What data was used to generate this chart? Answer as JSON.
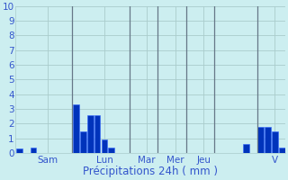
{
  "xlabel": "Précipitations 24h ( mm )",
  "ylim": [
    0,
    10
  ],
  "yticks": [
    0,
    1,
    2,
    3,
    4,
    5,
    6,
    7,
    8,
    9,
    10
  ],
  "background_color": "#cceef0",
  "bar_color": "#0033bb",
  "bar_edge_color": "#3366ff",
  "grid_color": "#aacccc",
  "day_labels": [
    "Sam",
    "Lun",
    "Mar",
    "Mer",
    "Jeu",
    "V"
  ],
  "bar_values": [
    0.3,
    0.0,
    0.35,
    0.0,
    0.0,
    0.0,
    0.0,
    0.0,
    3.3,
    1.5,
    2.6,
    2.6,
    0.9,
    0.35,
    0.0,
    0.0,
    0.0,
    0.0,
    0.0,
    0.0,
    0.0,
    0.0,
    0.0,
    0.0,
    0.0,
    0.0,
    0.0,
    0.0,
    0.0,
    0.0,
    0.0,
    0.0,
    0.6,
    0.0,
    1.8,
    1.8,
    1.5,
    0.35
  ],
  "num_bars": 38,
  "day_sep_indices": [
    8,
    16,
    20,
    24,
    28,
    34
  ],
  "day_center_indices": [
    4,
    12,
    18,
    22,
    26,
    36
  ],
  "separator_color": "#667788",
  "xlabel_color": "#3355cc",
  "xlabel_fontsize": 8.5,
  "tick_color": "#3355cc",
  "ytick_fontsize": 7.5,
  "xtick_fontsize": 7.5
}
